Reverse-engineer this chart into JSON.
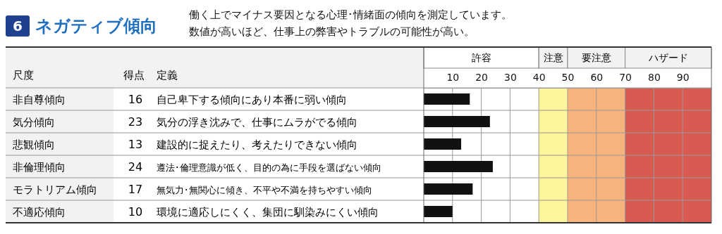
{
  "chart_data": {
    "type": "bar",
    "orientation": "horizontal",
    "title": "ネガティブ傾向",
    "subtitle": "働く上でマイナス要因となる心理･情緒面の傾向を測定しています。数値が高いほど、仕事上の弊害やトラブルの可能性が高い。",
    "ylabel": "尺度",
    "categories": [
      "非自尊傾向",
      "気分傾向",
      "悲観傾向",
      "非倫理傾向",
      "モラトリアム傾向",
      "不適応傾向"
    ],
    "values": [
      16,
      23,
      13,
      24,
      17,
      10
    ],
    "color": "#111111",
    "data_labels": true,
    "xlim": [
      0,
      100
    ],
    "x2lim": [
      0,
      100
    ],
    "x2ticks": [
      10,
      20,
      30,
      40,
      50,
      60,
      70,
      80,
      90
    ],
    "grid": "x",
    "bands": [
      {
        "axis": "x",
        "from": 40,
        "to": 50,
        "label": "注意",
        "color": "#fdf59b"
      },
      {
        "axis": "x",
        "from": 50,
        "to": 70,
        "label": "要注意",
        "color": "#f8b47c"
      },
      {
        "axis": "x",
        "from": 70,
        "to": 100,
        "label": "ハザード",
        "color": "#d95a50"
      }
    ],
    "annotations": [
      "6",
      "得点",
      "定義",
      "許容",
      "自己卑下する傾向にあり本番に弱い傾向",
      "気分の浮き沈みで、仕事にムラがでる傾向",
      "建設的に捉えたり、考えたりできない傾向",
      "遵法･倫理意識が低く、目的の為に手段を選ばない傾向",
      "無気力･無関心に傾き、不平や不満を持ちやすい傾向",
      "環境に適応しにくく、集団に馴染みにくい傾向"
    ]
  }
}
